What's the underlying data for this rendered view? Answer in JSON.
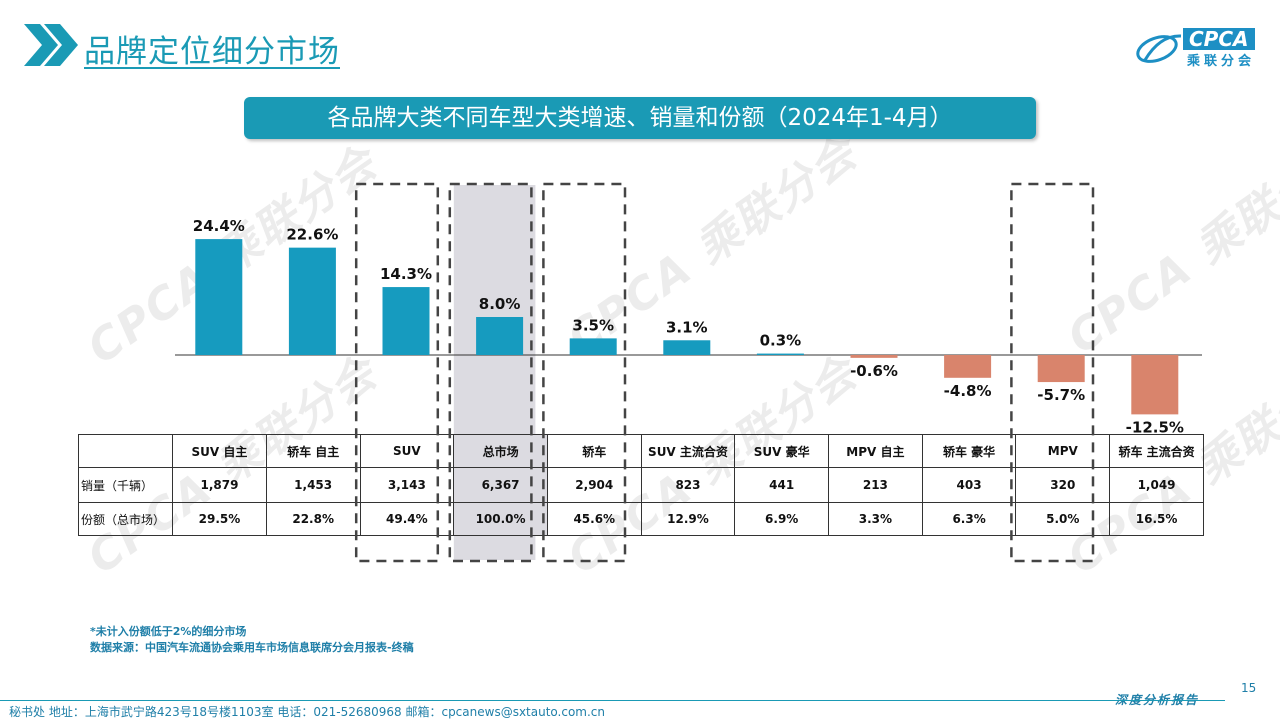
{
  "page": {
    "title": "品牌定位细分市场",
    "logo_text": "CPCA",
    "logo_sub": "乘联分会",
    "page_number": "15",
    "footer_text": "秘书处   地址：上海市武宁路423号18号楼1103室    电话：021-52680968    邮箱：cpcanews@sxtauto.com.cn",
    "footer_report": "深度分析报告",
    "note_line1": "*未计入份额低于2%的细分市场",
    "note_line2": "数据来源：中国汽车流通协会乘用车市场信息联席分会月报表-终稿",
    "watermark": "CPCA 乘联分会"
  },
  "colors": {
    "accent": "#1a9ab5",
    "positive": "#169bbf",
    "negative": "#d9846c",
    "highlight": "#dcdbe1"
  },
  "chart_data": {
    "type": "bar",
    "title": "各品牌大类不同车型大类增速、销量和份额（2024年1-4月）",
    "categories": [
      "SUV 自主",
      "轿车 自主",
      "SUV",
      "总市场",
      "轿车",
      "SUV 主流合资",
      "SUV 豪华",
      "MPV 自主",
      "轿车 豪华",
      "MPV",
      "轿车 主流合资"
    ],
    "values": [
      24.4,
      22.6,
      14.3,
      8.0,
      3.5,
      3.1,
      0.3,
      -0.6,
      -4.8,
      -5.7,
      -12.5
    ],
    "value_labels": [
      "24.4%",
      "22.6%",
      "14.3%",
      "8.0%",
      "3.5%",
      "3.1%",
      "0.3%",
      "-0.6%",
      "-4.8%",
      "-5.7%",
      "-12.5%"
    ],
    "unit": "%",
    "highlighted": [
      "SUV",
      "总市场",
      "轿车",
      "MPV"
    ],
    "table": {
      "row_labels": [
        "销量（千辆）",
        "份额（总市场）"
      ],
      "sales": [
        "1,879",
        "1,453",
        "3,143",
        "6,367",
        "2,904",
        "823",
        "441",
        "213",
        "403",
        "320",
        "1,049"
      ],
      "share": [
        "29.5%",
        "22.8%",
        "49.4%",
        "100.0%",
        "45.6%",
        "12.9%",
        "6.9%",
        "3.3%",
        "6.3%",
        "5.0%",
        "16.5%"
      ]
    }
  }
}
